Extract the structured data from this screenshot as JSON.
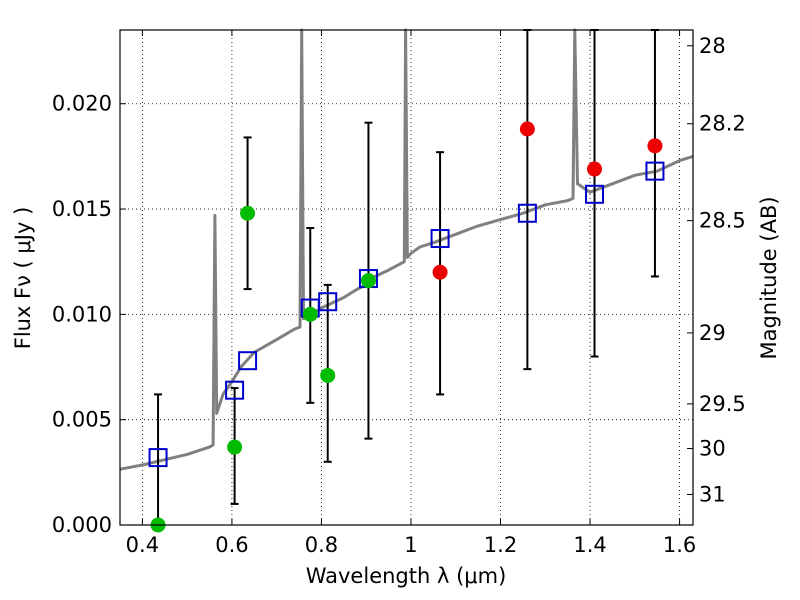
{
  "chart_data": {
    "type": "scatter",
    "xlabel": "Wavelength  λ (μm)",
    "ylabel": "Flux  Fν  ( μJy )",
    "y2label": "Magnitude (AB)",
    "xlim": [
      0.35,
      1.63
    ],
    "ylim": [
      0.0,
      0.0235
    ],
    "grid": true,
    "x_ticks": [
      {
        "value": 0.4,
        "label": "0.4"
      },
      {
        "value": 0.6,
        "label": "0.6"
      },
      {
        "value": 0.8,
        "label": "0.8"
      },
      {
        "value": 1.0,
        "label": "1"
      },
      {
        "value": 1.2,
        "label": "1.2"
      },
      {
        "value": 1.4,
        "label": "1.4"
      },
      {
        "value": 1.6,
        "label": "1.6"
      }
    ],
    "y_ticks": [
      {
        "value": 0.0,
        "label": "0.000"
      },
      {
        "value": 0.005,
        "label": "0.005"
      },
      {
        "value": 0.01,
        "label": "0.010"
      },
      {
        "value": 0.015,
        "label": "0.015"
      },
      {
        "value": 0.02,
        "label": "0.020"
      }
    ],
    "y2_ticks": [
      {
        "flux": 0.02275,
        "label": "28"
      },
      {
        "flux": 0.01905,
        "label": "28.2"
      },
      {
        "flux": 0.01445,
        "label": "28.5"
      },
      {
        "flux": 0.00912,
        "label": "29"
      },
      {
        "flux": 0.00575,
        "label": "29.5"
      },
      {
        "flux": 0.00363,
        "label": "30"
      },
      {
        "flux": 0.00145,
        "label": "31"
      }
    ],
    "model_spectrum": {
      "color": "#808080",
      "points": [
        [
          0.35,
          0.00265
        ],
        [
          0.4,
          0.00285
        ],
        [
          0.45,
          0.0031
        ],
        [
          0.5,
          0.00335
        ],
        [
          0.55,
          0.0037
        ],
        [
          0.558,
          0.0038
        ],
        [
          0.562,
          0.0147
        ],
        [
          0.566,
          0.0053
        ],
        [
          0.58,
          0.0062
        ],
        [
          0.6,
          0.0068
        ],
        [
          0.62,
          0.0075
        ],
        [
          0.65,
          0.0082
        ],
        [
          0.7,
          0.0088
        ],
        [
          0.74,
          0.0093
        ],
        [
          0.752,
          0.0094
        ],
        [
          0.756,
          0.0235
        ],
        [
          0.76,
          0.0098
        ],
        [
          0.8,
          0.0103
        ],
        [
          0.85,
          0.0108
        ],
        [
          0.88,
          0.0112
        ],
        [
          0.9,
          0.0114
        ],
        [
          0.92,
          0.0118
        ],
        [
          0.95,
          0.0121
        ],
        [
          0.985,
          0.0125
        ],
        [
          0.988,
          0.0235
        ],
        [
          0.992,
          0.0127
        ],
        [
          1.0,
          0.0129
        ],
        [
          1.02,
          0.0132
        ],
        [
          1.05,
          0.0134
        ],
        [
          1.1,
          0.0138
        ],
        [
          1.15,
          0.0142
        ],
        [
          1.2,
          0.0145
        ],
        [
          1.25,
          0.0148
        ],
        [
          1.3,
          0.0152
        ],
        [
          1.35,
          0.0154
        ],
        [
          1.362,
          0.0155
        ],
        [
          1.366,
          0.0235
        ],
        [
          1.372,
          0.0162
        ],
        [
          1.4,
          0.0158
        ],
        [
          1.45,
          0.0162
        ],
        [
          1.5,
          0.0166
        ],
        [
          1.55,
          0.0168
        ],
        [
          1.6,
          0.0173
        ],
        [
          1.63,
          0.0175
        ]
      ]
    },
    "model_photometry": {
      "color": "#0000cc",
      "x": [
        0.435,
        0.606,
        0.635,
        0.775,
        0.814,
        0.905,
        1.065,
        1.26,
        1.41,
        1.545
      ],
      "y": [
        0.0032,
        0.0064,
        0.0078,
        0.0103,
        0.0106,
        0.0117,
        0.0136,
        0.0148,
        0.0157,
        0.0168
      ]
    },
    "observed_green": {
      "color": "#00bb00",
      "x": [
        0.435,
        0.606,
        0.635,
        0.775,
        0.814,
        0.905
      ],
      "y": [
        0.0,
        0.0037,
        0.0148,
        0.01,
        0.0071,
        0.0116
      ],
      "yerr_low": [
        0.0,
        0.001,
        0.0112,
        0.0058,
        0.003,
        0.0041
      ],
      "yerr_high": [
        0.0062,
        0.0065,
        0.0184,
        0.0141,
        0.0114,
        0.0191
      ]
    },
    "observed_red": {
      "color": "#ee0000",
      "x": [
        1.065,
        1.26,
        1.41,
        1.545
      ],
      "y": [
        0.012,
        0.0188,
        0.0169,
        0.018
      ],
      "yerr_low": [
        0.0062,
        0.0074,
        0.008,
        0.0118
      ],
      "yerr_high": [
        0.0177,
        0.0235,
        0.0235,
        0.0235
      ]
    }
  }
}
